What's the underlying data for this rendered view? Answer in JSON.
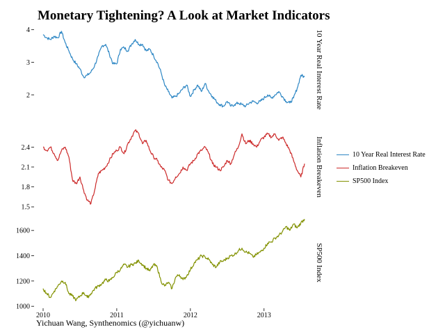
{
  "title": "Monetary Tightening? A Look at Market Indicators",
  "caption": "Yichuan Wang, Synthenomics (@yichuanw)",
  "colors": {
    "real_rate": "#2c86c4",
    "breakeven": "#cc2a2a",
    "sp500": "#829100"
  },
  "chart_data": {
    "type": "line",
    "title": "Monetary Tightening? A Look at Market Indicators",
    "xlabel": "",
    "x_ticks": [
      "2010",
      "2011",
      "2012",
      "2013"
    ],
    "xlim": [
      2010.0,
      2013.55
    ],
    "legend_position": "right",
    "series": [
      {
        "name": "10 Year Real Interest Rate",
        "panel_label": "10 Year Real Interest Rate",
        "ylim": [
          1.45,
          4.1
        ],
        "y_ticks": [
          "2",
          "3",
          "4"
        ],
        "y_tick_values": [
          2,
          3,
          4
        ],
        "x": [
          2010.0,
          2010.05,
          2010.1,
          2010.15,
          2010.2,
          2010.25,
          2010.3,
          2010.35,
          2010.4,
          2010.45,
          2010.5,
          2010.55,
          2010.6,
          2010.65,
          2010.7,
          2010.75,
          2010.8,
          2010.85,
          2010.9,
          2010.95,
          2011.0,
          2011.05,
          2011.1,
          2011.15,
          2011.2,
          2011.25,
          2011.3,
          2011.35,
          2011.4,
          2011.45,
          2011.5,
          2011.55,
          2011.6,
          2011.65,
          2011.7,
          2011.75,
          2011.8,
          2011.85,
          2011.9,
          2011.95,
          2012.0,
          2012.05,
          2012.1,
          2012.15,
          2012.2,
          2012.25,
          2012.3,
          2012.35,
          2012.4,
          2012.45,
          2012.5,
          2012.55,
          2012.6,
          2012.65,
          2012.7,
          2012.75,
          2012.8,
          2012.85,
          2012.9,
          2012.95,
          2013.0,
          2013.05,
          2013.1,
          2013.15,
          2013.2,
          2013.25,
          2013.3,
          2013.35,
          2013.4,
          2013.45,
          2013.5,
          2013.55
        ],
        "values": [
          3.85,
          3.75,
          3.7,
          3.8,
          3.75,
          3.95,
          3.6,
          3.35,
          3.1,
          2.95,
          2.8,
          2.55,
          2.6,
          2.7,
          2.9,
          3.2,
          3.5,
          3.55,
          3.25,
          2.95,
          2.95,
          3.4,
          3.45,
          3.35,
          3.55,
          3.7,
          3.55,
          3.55,
          3.35,
          3.4,
          3.2,
          3.0,
          2.7,
          2.3,
          2.1,
          1.9,
          1.95,
          2.05,
          2.2,
          2.3,
          1.95,
          2.15,
          2.3,
          2.1,
          2.35,
          2.1,
          1.95,
          1.8,
          1.7,
          1.65,
          1.8,
          1.65,
          1.7,
          1.75,
          1.7,
          1.65,
          1.75,
          1.8,
          1.75,
          1.8,
          1.9,
          2.0,
          1.9,
          2.0,
          2.1,
          1.95,
          1.8,
          1.75,
          1.9,
          2.2,
          2.6,
          2.55
        ]
      },
      {
        "name": "Inflation Breakeven",
        "panel_label": "Inflation Breakeven",
        "ylim": [
          1.45,
          2.75
        ],
        "y_ticks": [
          "1.5",
          "1.8",
          "2.1",
          "2.4"
        ],
        "y_tick_values": [
          1.5,
          1.8,
          2.1,
          2.4
        ],
        "x": [
          2010.0,
          2010.05,
          2010.1,
          2010.15,
          2010.2,
          2010.25,
          2010.3,
          2010.35,
          2010.4,
          2010.45,
          2010.5,
          2010.55,
          2010.6,
          2010.65,
          2010.7,
          2010.75,
          2010.8,
          2010.85,
          2010.9,
          2010.95,
          2011.0,
          2011.05,
          2011.1,
          2011.15,
          2011.2,
          2011.25,
          2011.3,
          2011.35,
          2011.4,
          2011.45,
          2011.5,
          2011.55,
          2011.6,
          2011.65,
          2011.7,
          2011.75,
          2011.8,
          2011.85,
          2011.9,
          2011.95,
          2012.0,
          2012.05,
          2012.1,
          2012.15,
          2012.2,
          2012.25,
          2012.3,
          2012.35,
          2012.4,
          2012.45,
          2012.5,
          2012.55,
          2012.6,
          2012.65,
          2012.7,
          2012.75,
          2012.8,
          2012.85,
          2012.9,
          2012.95,
          2013.0,
          2013.05,
          2013.1,
          2013.15,
          2013.2,
          2013.25,
          2013.3,
          2013.35,
          2013.4,
          2013.45,
          2013.5,
          2013.55
        ],
        "values": [
          2.4,
          2.35,
          2.4,
          2.3,
          2.2,
          2.35,
          2.4,
          2.25,
          1.9,
          1.85,
          1.95,
          1.75,
          1.6,
          1.55,
          1.75,
          2.0,
          2.05,
          2.1,
          2.2,
          2.3,
          2.35,
          2.4,
          2.3,
          2.45,
          2.55,
          2.65,
          2.6,
          2.45,
          2.5,
          2.35,
          2.25,
          2.2,
          2.1,
          2.05,
          1.9,
          1.85,
          1.95,
          2.0,
          2.1,
          2.05,
          2.15,
          2.2,
          2.3,
          2.35,
          2.4,
          2.3,
          2.15,
          2.1,
          2.05,
          2.1,
          2.2,
          2.15,
          2.3,
          2.4,
          2.6,
          2.45,
          2.5,
          2.45,
          2.4,
          2.5,
          2.55,
          2.6,
          2.55,
          2.6,
          2.5,
          2.55,
          2.45,
          2.35,
          2.2,
          2.05,
          1.95,
          2.15
        ]
      },
      {
        "name": "SP500 Index",
        "panel_label": "SP500 Index",
        "ylim": [
          990,
          1700
        ],
        "y_ticks": [
          "1000",
          "1200",
          "1400",
          "1600"
        ],
        "y_tick_values": [
          1000,
          1200,
          1400,
          1600
        ],
        "x": [
          2010.0,
          2010.05,
          2010.1,
          2010.15,
          2010.2,
          2010.25,
          2010.3,
          2010.35,
          2010.4,
          2010.45,
          2010.5,
          2010.55,
          2010.6,
          2010.65,
          2010.7,
          2010.75,
          2010.8,
          2010.85,
          2010.9,
          2010.95,
          2011.0,
          2011.05,
          2011.1,
          2011.15,
          2011.2,
          2011.25,
          2011.3,
          2011.35,
          2011.4,
          2011.45,
          2011.5,
          2011.55,
          2011.6,
          2011.65,
          2011.7,
          2011.75,
          2011.8,
          2011.85,
          2011.9,
          2011.95,
          2012.0,
          2012.05,
          2012.1,
          2012.15,
          2012.2,
          2012.25,
          2012.3,
          2012.35,
          2012.4,
          2012.45,
          2012.5,
          2012.55,
          2012.6,
          2012.65,
          2012.7,
          2012.75,
          2012.8,
          2012.85,
          2012.9,
          2012.95,
          2013.0,
          2013.05,
          2013.1,
          2013.15,
          2013.2,
          2013.25,
          2013.3,
          2013.35,
          2013.4,
          2013.45,
          2013.5,
          2013.55
        ],
        "values": [
          1140,
          1100,
          1070,
          1120,
          1160,
          1200,
          1190,
          1100,
          1080,
          1050,
          1080,
          1110,
          1070,
          1100,
          1140,
          1160,
          1180,
          1210,
          1200,
          1230,
          1270,
          1290,
          1330,
          1310,
          1330,
          1340,
          1360,
          1330,
          1300,
          1280,
          1330,
          1310,
          1200,
          1160,
          1190,
          1140,
          1230,
          1250,
          1210,
          1240,
          1290,
          1340,
          1370,
          1400,
          1390,
          1370,
          1330,
          1310,
          1350,
          1360,
          1380,
          1400,
          1410,
          1440,
          1460,
          1430,
          1420,
          1390,
          1410,
          1430,
          1460,
          1500,
          1510,
          1540,
          1560,
          1590,
          1630,
          1600,
          1650,
          1620,
          1660,
          1690
        ]
      }
    ]
  }
}
